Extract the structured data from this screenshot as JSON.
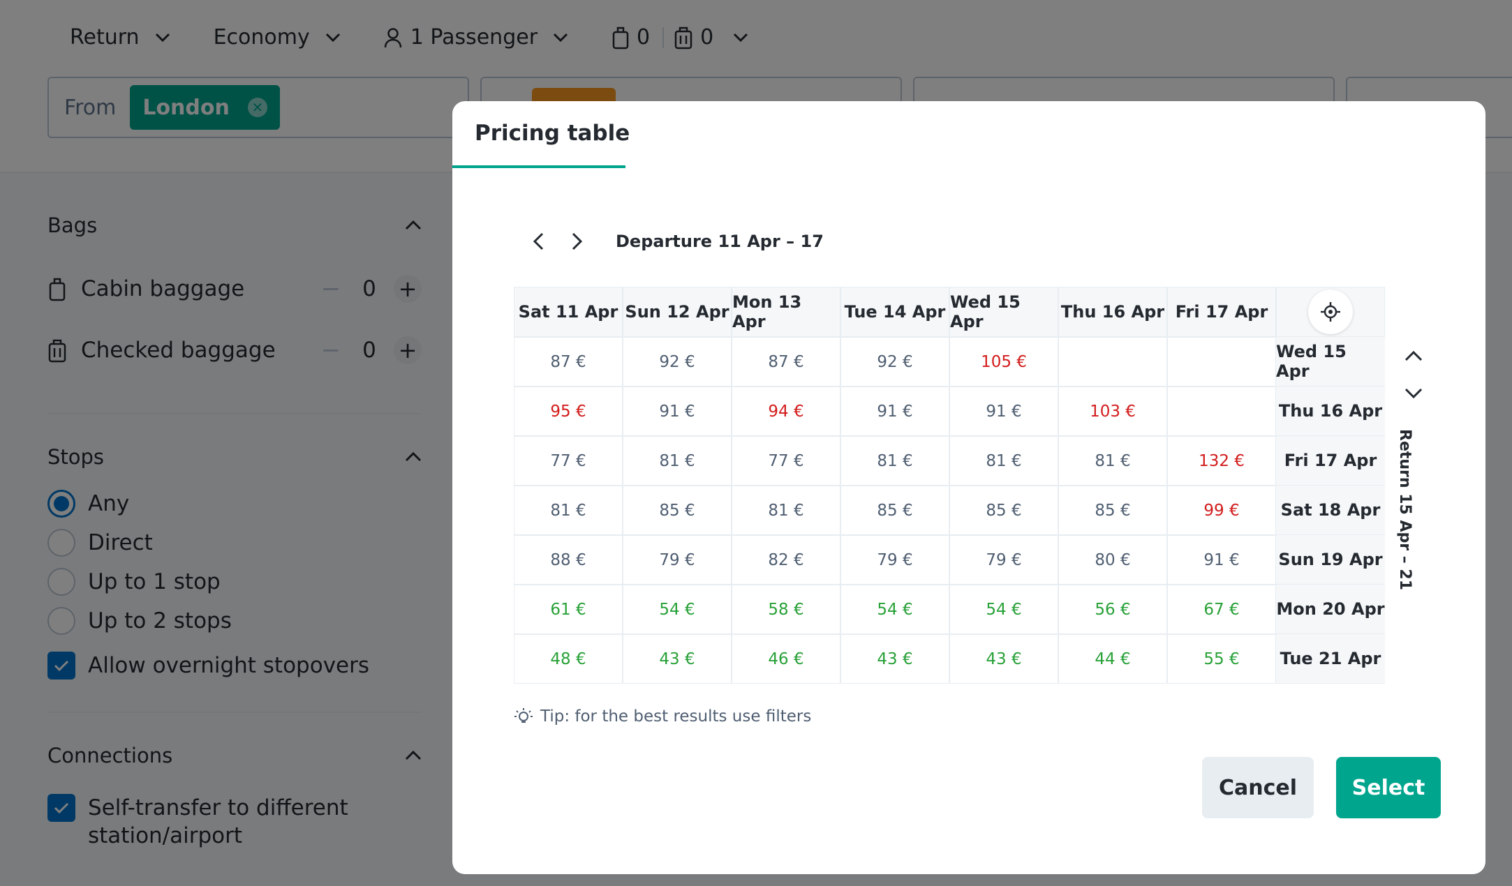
{
  "search": {
    "trip_type": "Return",
    "cabin_class": "Economy",
    "passengers": "1 Passenger",
    "cabin_bags": "0",
    "checked_bags": "0",
    "from_label": "From",
    "from_chip": "London"
  },
  "sidebar": {
    "bags": {
      "title": "Bags",
      "cabin": {
        "label": "Cabin baggage",
        "value": "0"
      },
      "checked": {
        "label": "Checked baggage",
        "value": "0"
      }
    },
    "stops": {
      "title": "Stops",
      "options": [
        {
          "label": "Any",
          "checked": true
        },
        {
          "label": "Direct",
          "checked": false
        },
        {
          "label": "Up to 1 stop",
          "checked": false
        },
        {
          "label": "Up to 2 stops",
          "checked": false
        }
      ],
      "overnight": "Allow overnight stopovers"
    },
    "connections": {
      "title": "Connections",
      "self_transfer": "Self-transfer to different station/airport"
    }
  },
  "modal": {
    "tab": "Pricing table",
    "departure_range": "Departure 11 Apr – 17",
    "return_range": "Return 15 Apr – 21",
    "columns": [
      "Sat 11 Apr",
      "Sun 12 Apr",
      "Mon 13 Apr",
      "Tue 14 Apr",
      "Wed 15 Apr",
      "Thu 16 Apr",
      "Fri 17 Apr"
    ],
    "rows": [
      {
        "date": "Wed 15 Apr",
        "prices": [
          "87 €",
          "92 €",
          "87 €",
          "92 €",
          "105 €",
          "",
          ""
        ],
        "tones": [
          "n",
          "n",
          "n",
          "n",
          "h",
          "n",
          "n"
        ]
      },
      {
        "date": "Thu 16 Apr",
        "prices": [
          "95 €",
          "91 €",
          "94 €",
          "91 €",
          "91 €",
          "103 €",
          ""
        ],
        "tones": [
          "h",
          "n",
          "h",
          "n",
          "n",
          "h",
          "n"
        ]
      },
      {
        "date": "Fri 17 Apr",
        "prices": [
          "77 €",
          "81 €",
          "77 €",
          "81 €",
          "81 €",
          "81 €",
          "132 €"
        ],
        "tones": [
          "n",
          "n",
          "n",
          "n",
          "n",
          "n",
          "h"
        ]
      },
      {
        "date": "Sat 18 Apr",
        "prices": [
          "81 €",
          "85 €",
          "81 €",
          "85 €",
          "85 €",
          "85 €",
          "99 €"
        ],
        "tones": [
          "n",
          "n",
          "n",
          "n",
          "n",
          "n",
          "h"
        ]
      },
      {
        "date": "Sun 19 Apr",
        "prices": [
          "88 €",
          "79 €",
          "82 €",
          "79 €",
          "79 €",
          "80 €",
          "91 €"
        ],
        "tones": [
          "n",
          "n",
          "n",
          "n",
          "n",
          "n",
          "n"
        ]
      },
      {
        "date": "Mon 20 Apr",
        "prices": [
          "61 €",
          "54 €",
          "58 €",
          "54 €",
          "54 €",
          "56 €",
          "67 €"
        ],
        "tones": [
          "l",
          "l",
          "l",
          "l",
          "l",
          "l",
          "l"
        ]
      },
      {
        "date": "Tue 21 Apr",
        "prices": [
          "48 €",
          "43 €",
          "46 €",
          "43 €",
          "43 €",
          "44 €",
          "55 €"
        ],
        "tones": [
          "l",
          "l",
          "l",
          "l",
          "l",
          "l",
          "l"
        ]
      }
    ],
    "tip": "Tip: for the best results use filters",
    "cancel": "Cancel",
    "select": "Select"
  },
  "colors": {
    "accent": "#00a58e",
    "price_high": "#d21c1c",
    "price_low": "#28a138",
    "price_normal": "#4f5e71",
    "selection": "#0172cb"
  }
}
